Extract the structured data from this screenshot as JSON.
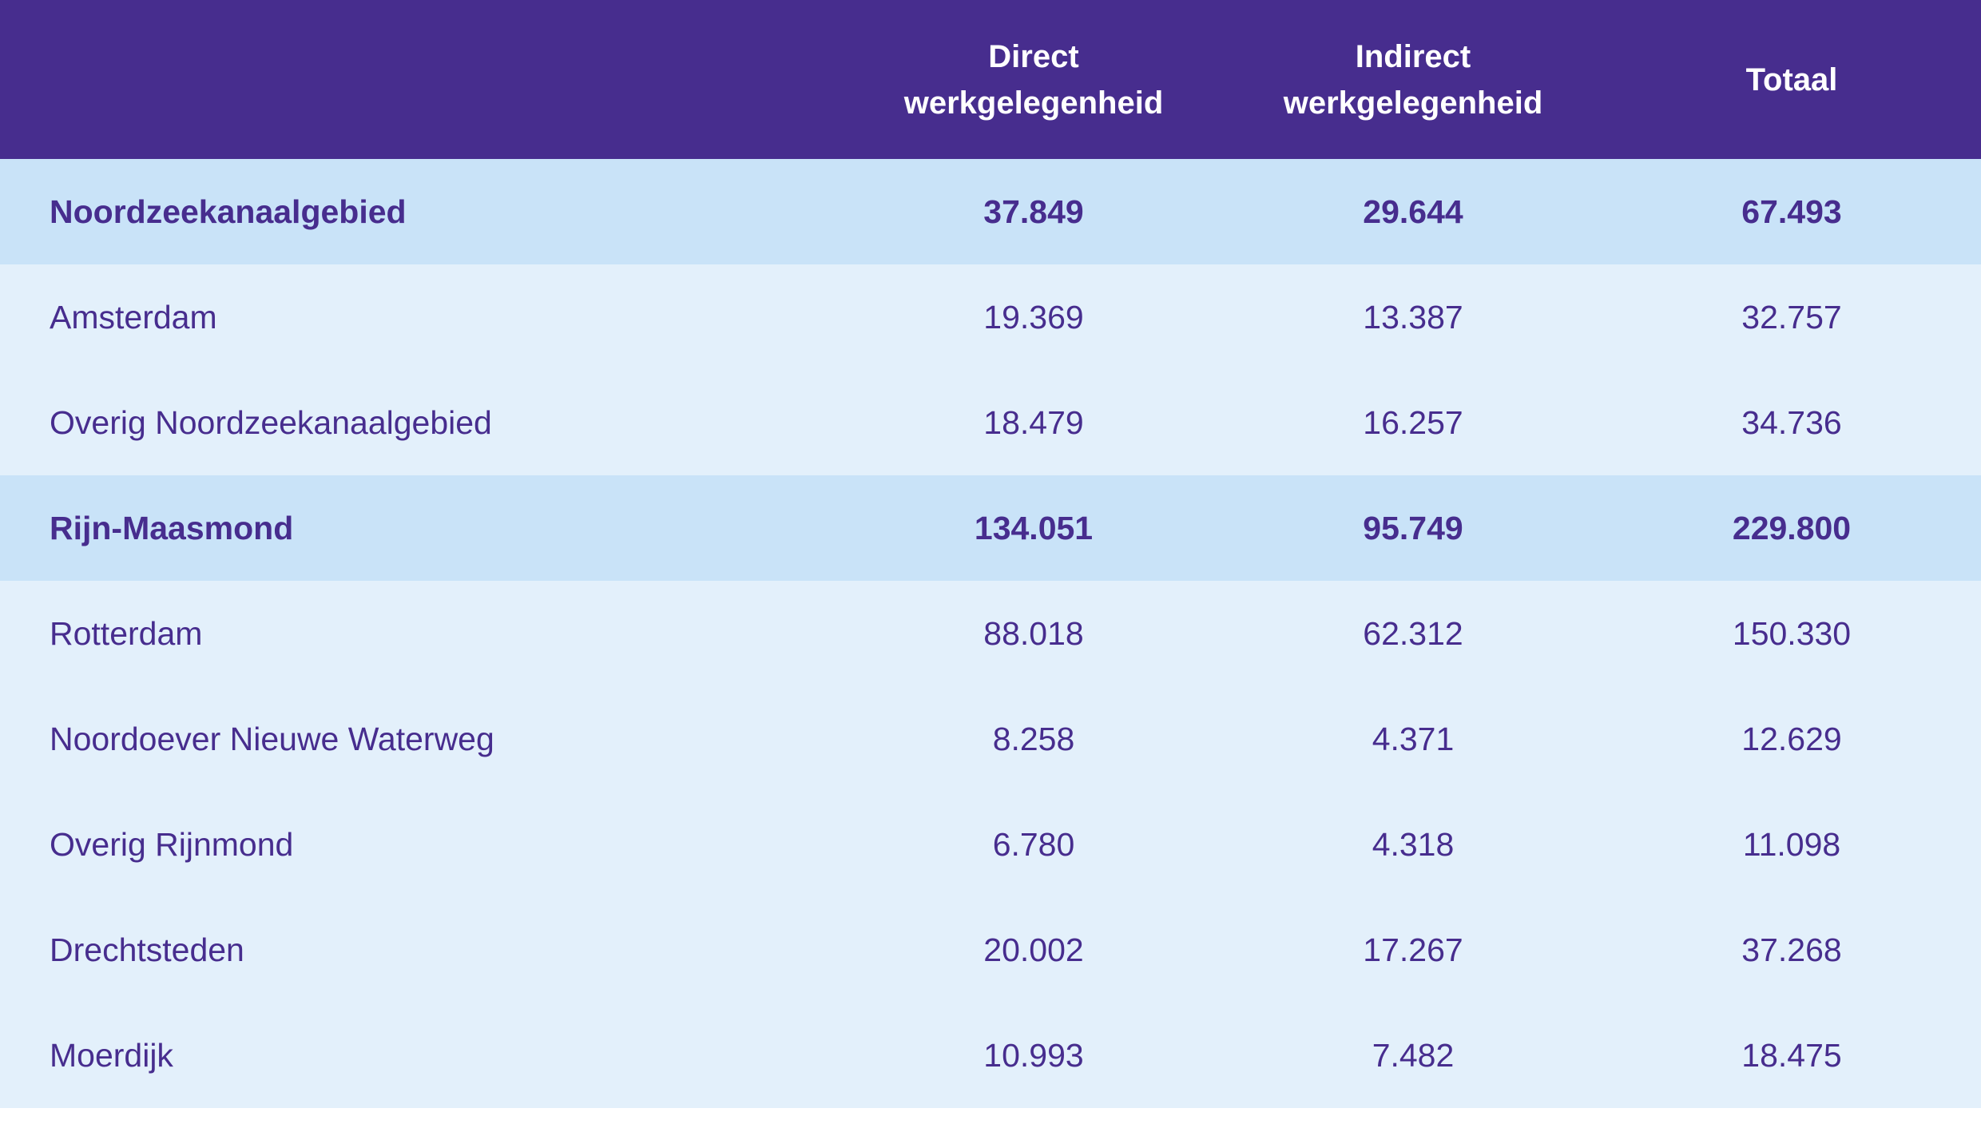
{
  "colors": {
    "header_bg": "#472d8e",
    "header_text": "#ffffff",
    "group_row_bg": "#c9e3f8",
    "row_bg": "#e3f0fb",
    "body_text": "#472d8e"
  },
  "chart_data": {
    "type": "table",
    "columns": [
      "",
      "Direct\nwerkgelegenheid",
      "Indirect\nwerkgelegenheid",
      "Totaal"
    ],
    "rows": [
      {
        "label": "Noordzeekanaalgebied",
        "group": true,
        "values": [
          "37.849",
          "29.644",
          "67.493"
        ]
      },
      {
        "label": "Amsterdam",
        "group": false,
        "values": [
          "19.369",
          "13.387",
          "32.757"
        ]
      },
      {
        "label": "Overig Noordzeekanaalgebied",
        "group": false,
        "values": [
          "18.479",
          "16.257",
          "34.736"
        ]
      },
      {
        "label": "Rijn-Maasmond",
        "group": true,
        "values": [
          "134.051",
          "95.749",
          "229.800"
        ]
      },
      {
        "label": "Rotterdam",
        "group": false,
        "values": [
          "88.018",
          "62.312",
          "150.330"
        ]
      },
      {
        "label": "Noordoever Nieuwe Waterweg",
        "group": false,
        "values": [
          "8.258",
          "4.371",
          "12.629"
        ]
      },
      {
        "label": "Overig Rijnmond",
        "group": false,
        "values": [
          "6.780",
          "4.318",
          "11.098"
        ]
      },
      {
        "label": "Drechtsteden",
        "group": false,
        "values": [
          "20.002",
          "17.267",
          "37.268"
        ]
      },
      {
        "label": "Moerdijk",
        "group": false,
        "values": [
          "10.993",
          "7.482",
          "18.475"
        ]
      }
    ]
  }
}
